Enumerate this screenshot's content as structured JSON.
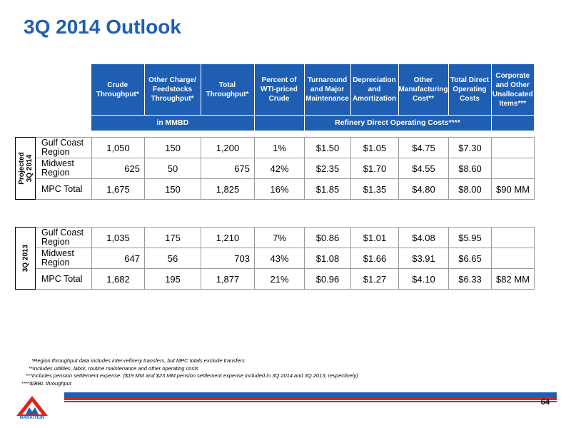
{
  "title": "3Q 2014 Outlook",
  "header": {
    "columns": [
      "Crude Throughput*",
      "Other Charge/ Feedstocks Throughput*",
      "Total Throughput*",
      "Percent of WTI-priced Crude",
      "Turnaround and Major Maintenance",
      "Depreciation and Amortization",
      "Other Manufacturing Cost**",
      "Total Direct Operating Costs",
      "Corporate and Other Unallocated Items***"
    ],
    "band_mmbd": "in MMBD",
    "band_costs": "Refinery Direct Operating Costs****"
  },
  "projected_2014": {
    "side_label_line1": "Projected",
    "side_label_line2": "3Q 2014",
    "rows": [
      {
        "label": "Gulf Coast Region",
        "crude": "1,050",
        "other": "150",
        "total": "1,200",
        "wti": "1%",
        "turnaround": "$1.50",
        "dep": "$1.05",
        "othermfg": "$4.75",
        "totaldirect": "$7.30",
        "corp": ""
      },
      {
        "label": "Midwest Region",
        "crude": "625",
        "other": "50",
        "total": "675",
        "wti": "42%",
        "turnaround": "$2.35",
        "dep": "$1.70",
        "othermfg": "$4.55",
        "totaldirect": "$8.60",
        "corp": ""
      },
      {
        "label": "MPC Total",
        "crude": "1,675",
        "other": "150",
        "total": "1,825",
        "wti": "16%",
        "turnaround": "$1.85",
        "dep": "$1.35",
        "othermfg": "$4.80",
        "totaldirect": "$8.00",
        "corp": "$90 MM"
      }
    ]
  },
  "actual_2013": {
    "side_label": "3Q 2013",
    "rows": [
      {
        "label": "Gulf Coast Region",
        "crude": "1,035",
        "other": "175",
        "total": "1,210",
        "wti": "7%",
        "turnaround": "$0.86",
        "dep": "$1.01",
        "othermfg": "$4.08",
        "totaldirect": "$5.95",
        "corp": ""
      },
      {
        "label": "Midwest Region",
        "crude": "647",
        "other": "56",
        "total": "703",
        "wti": "43%",
        "turnaround": "$1.08",
        "dep": "$1.66",
        "othermfg": "$3.91",
        "totaldirect": "$6.65",
        "corp": ""
      },
      {
        "label": "MPC Total",
        "crude": "1,682",
        "other": "195",
        "total": "1,877",
        "wti": "21%",
        "turnaround": "$0.96",
        "dep": "$1.27",
        "othermfg": "$4.10",
        "totaldirect": "$6.33",
        "corp": "$82 MM"
      }
    ]
  },
  "notes": [
    "*Region throughput data includes inter-refinery transfers, but MPC totals exclude transfers",
    "**Includes utilities, labor, routine maintenance and other operating costs",
    "***Includes pension settlement expense.  ($19 MM and $23 MM pension settlement expense included in 3Q 2014 and 3Q 2013, respectively)",
    "****$/BBL throughput"
  ],
  "footer": {
    "page_number": "64",
    "logo_text": "MARATHON",
    "brand_blue": "#1f5fb3",
    "brand_red": "#e2231a"
  }
}
